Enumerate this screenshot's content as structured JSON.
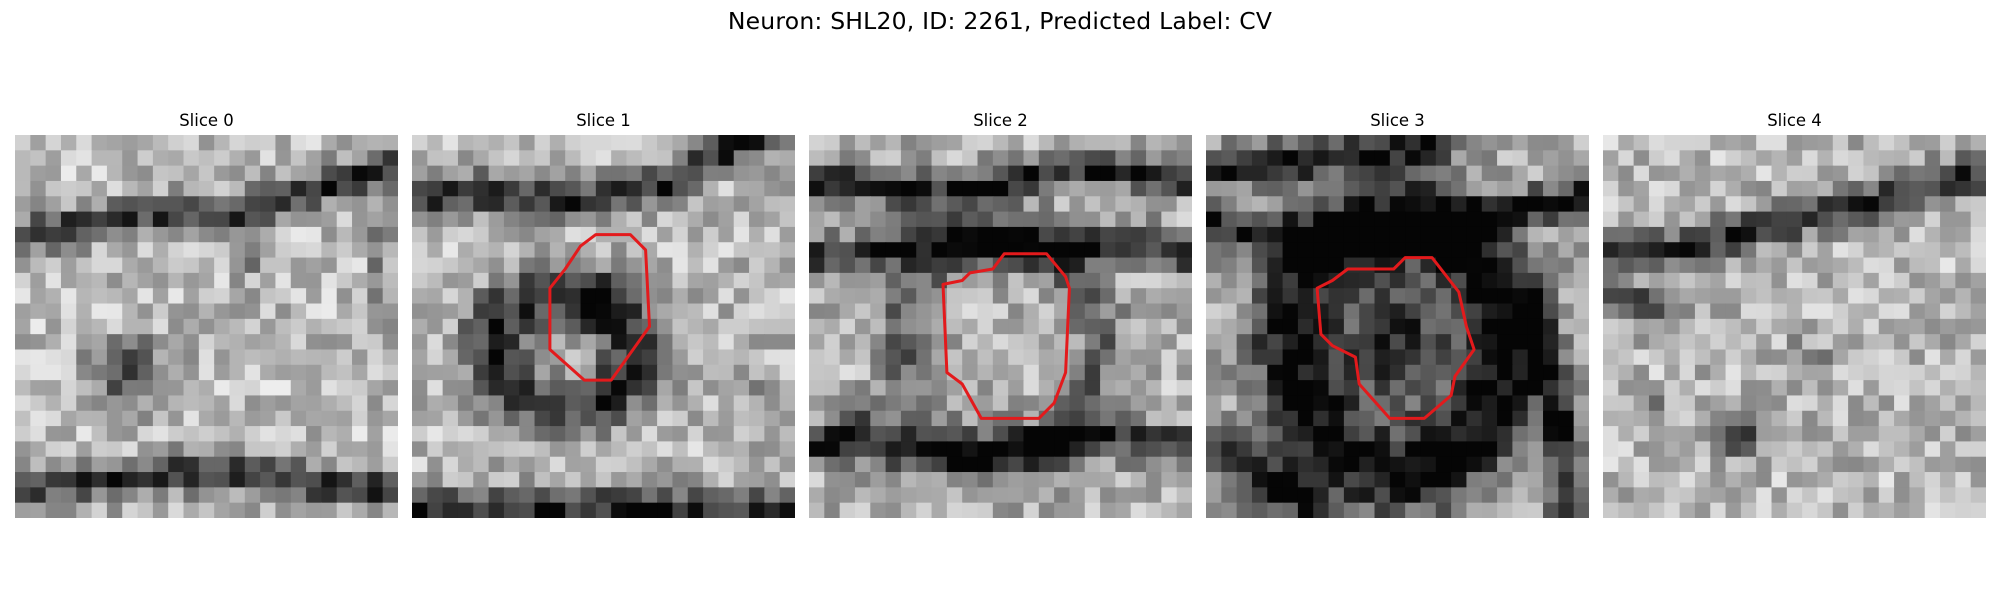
{
  "figure": {
    "title": "Neuron: SHL20, ID: 2261, Predicted Label: CV",
    "contour_color": "#e31a1c"
  },
  "slices": [
    {
      "title": "Slice 0",
      "has_contour": false
    },
    {
      "title": "Slice 1",
      "has_contour": true
    },
    {
      "title": "Slice 2",
      "has_contour": true
    },
    {
      "title": "Slice 3",
      "has_contour": true
    },
    {
      "title": "Slice 4",
      "has_contour": false
    }
  ]
}
